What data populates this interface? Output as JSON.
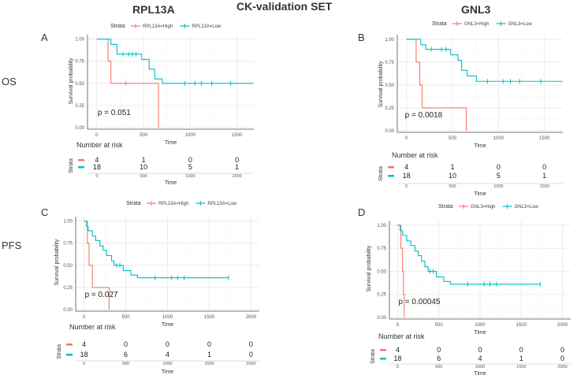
{
  "figure_title": "CK-validation SET",
  "row_labels": {
    "os": "OS",
    "pfs": "PFS"
  },
  "gene_labels": {
    "rpl13a": "RPL13A",
    "gnl3": "GNL3"
  },
  "colors": {
    "high": "#F8766D",
    "low": "#00BFC4",
    "grid": "#EBEBEB",
    "axis": "#4D4D4D"
  },
  "chart_data": [
    {
      "panel": "A",
      "type": "line",
      "title": "RPL13A",
      "row": "OS",
      "xlabel": "Time",
      "ylabel": "Survival probability",
      "xlim": [
        -100,
        1680
      ],
      "ylim": [
        0,
        1.05
      ],
      "xticks": [
        0,
        500,
        1000,
        1500
      ],
      "yticks": [
        0.0,
        0.25,
        0.5,
        0.75,
        1.0
      ],
      "ytick_labels": [
        "0.00",
        "0.25",
        "0.50",
        "0.75",
        "1.00"
      ],
      "legend_title": "Strata",
      "legend_position": "top",
      "series": [
        {
          "name": "RPL13A=High",
          "color": "#F8766D",
          "steps": [
            [
              0,
              1.0
            ],
            [
              120,
              0.75
            ],
            [
              150,
              0.5
            ],
            [
              660,
              0.0
            ]
          ],
          "end": 660,
          "censor": [
            [
              310,
              0.5
            ]
          ]
        },
        {
          "name": "RPL13A=Low",
          "color": "#00BFC4",
          "steps": [
            [
              0,
              1.0
            ],
            [
              150,
              0.94
            ],
            [
              215,
              0.83
            ],
            [
              480,
              0.77
            ],
            [
              560,
              0.66
            ],
            [
              620,
              0.55
            ],
            [
              700,
              0.5
            ]
          ],
          "end": 1680,
          "censor": [
            [
              280,
              0.83
            ],
            [
              340,
              0.83
            ],
            [
              380,
              0.83
            ],
            [
              420,
              0.83
            ],
            [
              940,
              0.5
            ],
            [
              1050,
              0.5
            ],
            [
              1120,
              0.5
            ],
            [
              1230,
              0.5
            ],
            [
              1430,
              0.5
            ]
          ]
        }
      ],
      "pvalue": "p = 0.051",
      "risk_table": {
        "title": "Number at risk",
        "strata_label": "Strata",
        "xlabel": "Time",
        "time_points": [
          0,
          500,
          1000,
          1500
        ],
        "rows": [
          {
            "name": "High",
            "color": "#F8766D",
            "counts": [
              4,
              1,
              0,
              0
            ]
          },
          {
            "name": "Low",
            "color": "#00BFC4",
            "counts": [
              18,
              10,
              5,
              1
            ]
          }
        ]
      }
    },
    {
      "panel": "B",
      "type": "line",
      "title": "GNL3",
      "row": "OS",
      "xlabel": "Time",
      "ylabel": "Survival probability",
      "xlim": [
        -100,
        1700
      ],
      "ylim": [
        0,
        1.05
      ],
      "xticks": [
        0,
        500,
        1000,
        1500
      ],
      "yticks": [
        0.0,
        0.25,
        0.5,
        0.75,
        1.0
      ],
      "ytick_labels": [
        "0.00",
        "0.25",
        "0.50",
        "0.75",
        "1.00"
      ],
      "legend_title": "Strata",
      "legend_position": "top",
      "series": [
        {
          "name": "GNL3=High",
          "color": "#F8766D",
          "steps": [
            [
              0,
              1.0
            ],
            [
              105,
              0.75
            ],
            [
              145,
              0.5
            ],
            [
              170,
              0.25
            ],
            [
              650,
              0.0
            ]
          ],
          "end": 650,
          "censor": []
        },
        {
          "name": "GNL3=Low",
          "color": "#00BFC4",
          "steps": [
            [
              0,
              1.0
            ],
            [
              155,
              0.94
            ],
            [
              210,
              0.89
            ],
            [
              480,
              0.83
            ],
            [
              560,
              0.77
            ],
            [
              600,
              0.66
            ],
            [
              660,
              0.6
            ],
            [
              760,
              0.54
            ]
          ],
          "end": 1700,
          "censor": [
            [
              270,
              0.89
            ],
            [
              380,
              0.89
            ],
            [
              430,
              0.89
            ],
            [
              880,
              0.54
            ],
            [
              1050,
              0.54
            ],
            [
              1130,
              0.54
            ],
            [
              1230,
              0.54
            ],
            [
              1460,
              0.54
            ]
          ]
        }
      ],
      "pvalue": "p = 0.0018",
      "risk_table": {
        "title": "Number at risk",
        "strata_label": "Strata",
        "xlabel": "Time",
        "time_points": [
          0,
          500,
          1000,
          1500
        ],
        "rows": [
          {
            "name": "High",
            "color": "#F8766D",
            "counts": [
              4,
              1,
              0,
              0
            ]
          },
          {
            "name": "Low",
            "color": "#00BFC4",
            "counts": [
              18,
              10,
              5,
              1
            ]
          }
        ]
      }
    },
    {
      "panel": "C",
      "type": "line",
      "title": "",
      "row": "PFS",
      "xlabel": "Time",
      "ylabel": "Survival probability",
      "xlim": [
        -100,
        2100
      ],
      "ylim": [
        0,
        1.05
      ],
      "xticks": [
        0,
        500,
        1000,
        1500,
        2000
      ],
      "yticks": [
        0.0,
        0.25,
        0.5,
        0.75,
        1.0
      ],
      "ytick_labels": [
        "0.00",
        "0.25",
        "0.50",
        "0.75",
        "1.00"
      ],
      "legend_title": "Strata",
      "legend_position": "top",
      "series": [
        {
          "name": "RPL13A=High",
          "color": "#F8766D",
          "steps": [
            [
              0,
              1.0
            ],
            [
              40,
              0.75
            ],
            [
              60,
              0.5
            ],
            [
              100,
              0.25
            ],
            [
              300,
              0.0
            ]
          ],
          "end": 300,
          "censor": []
        },
        {
          "name": "RPL13A=Low",
          "color": "#00BFC4",
          "steps": [
            [
              0,
              1.0
            ],
            [
              30,
              0.94
            ],
            [
              50,
              0.89
            ],
            [
              100,
              0.83
            ],
            [
              140,
              0.78
            ],
            [
              190,
              0.72
            ],
            [
              230,
              0.67
            ],
            [
              270,
              0.61
            ],
            [
              330,
              0.55
            ],
            [
              360,
              0.5
            ],
            [
              470,
              0.44
            ],
            [
              560,
              0.39
            ],
            [
              640,
              0.36
            ]
          ],
          "end": 1730,
          "censor": [
            [
              390,
              0.5
            ],
            [
              430,
              0.5
            ],
            [
              850,
              0.36
            ],
            [
              1050,
              0.36
            ],
            [
              1120,
              0.36
            ],
            [
              1200,
              0.36
            ],
            [
              1730,
              0.36
            ]
          ]
        }
      ],
      "pvalue": "p = 0.027",
      "risk_table": {
        "title": "Number at risk",
        "strata_label": "Strata",
        "xlabel": "Time",
        "time_points": [
          0,
          500,
          1000,
          1500,
          2000
        ],
        "rows": [
          {
            "name": "High",
            "color": "#F8766D",
            "counts": [
              4,
              0,
              0,
              0,
              0
            ]
          },
          {
            "name": "Low",
            "color": "#00BFC4",
            "counts": [
              18,
              6,
              4,
              1,
              0
            ]
          }
        ]
      }
    },
    {
      "panel": "D",
      "type": "line",
      "title": "",
      "row": "PFS",
      "xlabel": "Time",
      "ylabel": "Survival probability",
      "xlim": [
        -100,
        2100
      ],
      "ylim": [
        0,
        1.05
      ],
      "xticks": [
        0,
        500,
        1000,
        1500,
        2000
      ],
      "yticks": [
        0.0,
        0.25,
        0.5,
        0.75,
        1.0
      ],
      "ytick_labels": [
        "0.00",
        "0.25",
        "0.50",
        "0.75",
        "1.00"
      ],
      "legend_title": "Strata",
      "legend_position": "top",
      "series": [
        {
          "name": "GNL3=High",
          "color": "#F8766D",
          "steps": [
            [
              0,
              1.0
            ],
            [
              40,
              0.75
            ],
            [
              60,
              0.5
            ],
            [
              70,
              0.25
            ],
            [
              80,
              0.0
            ]
          ],
          "end": 80,
          "censor": []
        },
        {
          "name": "GNL3=Low",
          "color": "#00BFC4",
          "steps": [
            [
              0,
              1.0
            ],
            [
              30,
              0.94
            ],
            [
              60,
              0.89
            ],
            [
              110,
              0.83
            ],
            [
              160,
              0.78
            ],
            [
              210,
              0.72
            ],
            [
              250,
              0.67
            ],
            [
              290,
              0.61
            ],
            [
              330,
              0.55
            ],
            [
              370,
              0.5
            ],
            [
              470,
              0.44
            ],
            [
              560,
              0.39
            ],
            [
              640,
              0.36
            ]
          ],
          "end": 1730,
          "censor": [
            [
              390,
              0.5
            ],
            [
              430,
              0.5
            ],
            [
              850,
              0.36
            ],
            [
              1050,
              0.36
            ],
            [
              1120,
              0.36
            ],
            [
              1200,
              0.36
            ],
            [
              1730,
              0.36
            ]
          ]
        }
      ],
      "pvalue": "p = 0.00045",
      "risk_table": {
        "title": "Number at risk",
        "strata_label": "Strata",
        "xlabel": "Time",
        "time_points": [
          0,
          500,
          1000,
          1500,
          2000
        ],
        "rows": [
          {
            "name": "High",
            "color": "#F8766D",
            "counts": [
              4,
              0,
              0,
              0,
              0
            ]
          },
          {
            "name": "Low",
            "color": "#00BFC4",
            "counts": [
              18,
              6,
              4,
              1,
              0
            ]
          }
        ]
      }
    }
  ]
}
